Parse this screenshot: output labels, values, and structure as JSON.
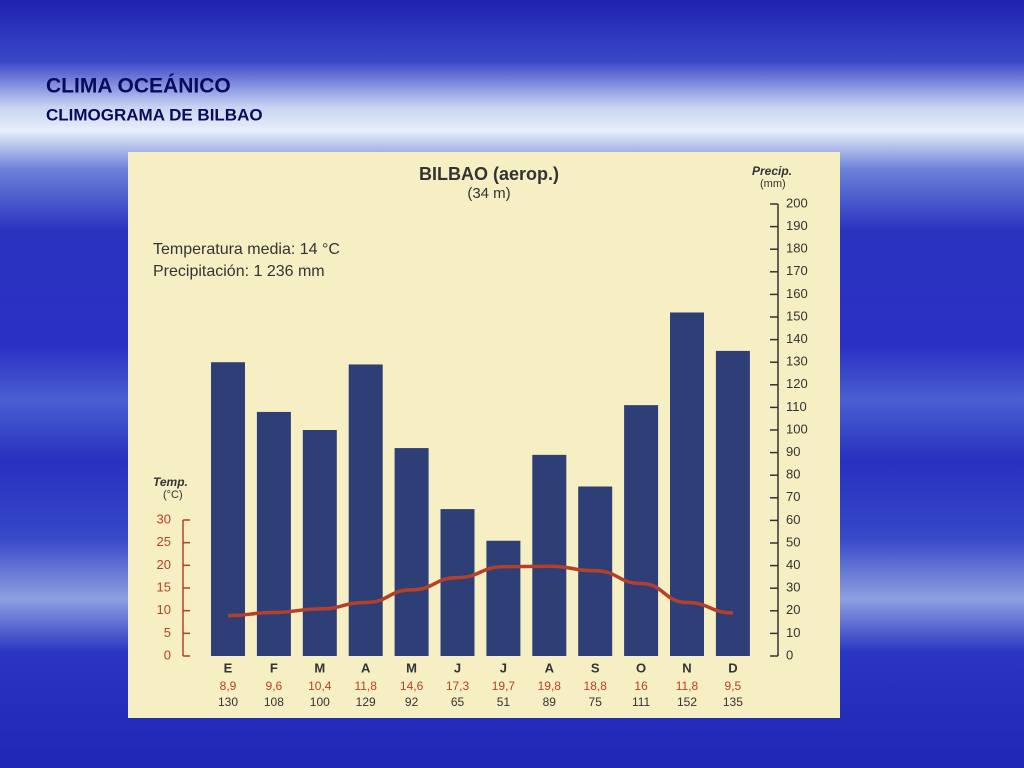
{
  "slide": {
    "title": "CLIMA OCEÁNICO",
    "subtitle": "CLIMOGRAMA DE BILBAO"
  },
  "chart_data": {
    "type": "bar",
    "title": "BILBAO (aerop.)",
    "subtitle": "(34 m)",
    "annotations": [
      "Temperatura media: 14 °C",
      "Precipitación: 1 236 mm"
    ],
    "ylabel": [
      "Temp.",
      "(°C)"
    ],
    "y2label": [
      "Precip.",
      "(mm)"
    ],
    "categories": [
      "E",
      "F",
      "M",
      "A",
      "M",
      "J",
      "J",
      "A",
      "S",
      "O",
      "N",
      "D"
    ],
    "ylim": [
      0,
      30
    ],
    "yticks": [
      0,
      5,
      10,
      15,
      20,
      25,
      30
    ],
    "y2lim": [
      0,
      200
    ],
    "y2ticks": [
      0,
      10,
      20,
      30,
      40,
      50,
      60,
      70,
      80,
      90,
      100,
      110,
      120,
      130,
      140,
      150,
      160,
      170,
      180,
      190,
      200
    ],
    "series": [
      {
        "type": "line",
        "color": "#b5402a",
        "values": [
          8.9,
          9.6,
          10.4,
          11.8,
          14.6,
          17.3,
          19.7,
          19.8,
          18.8,
          16,
          11.8,
          9.5
        ],
        "value_labels": [
          "8,9",
          "9,6",
          "10,4",
          "11,8",
          "14,6",
          "17,3",
          "19,7",
          "19,8",
          "18,8",
          "16",
          "11,8",
          "9,5"
        ]
      },
      {
        "type": "bar",
        "axis": "y2",
        "color": "#2e3f78",
        "values": [
          130,
          108,
          100,
          129,
          92,
          65,
          51,
          89,
          75,
          111,
          152,
          135
        ]
      }
    ]
  }
}
